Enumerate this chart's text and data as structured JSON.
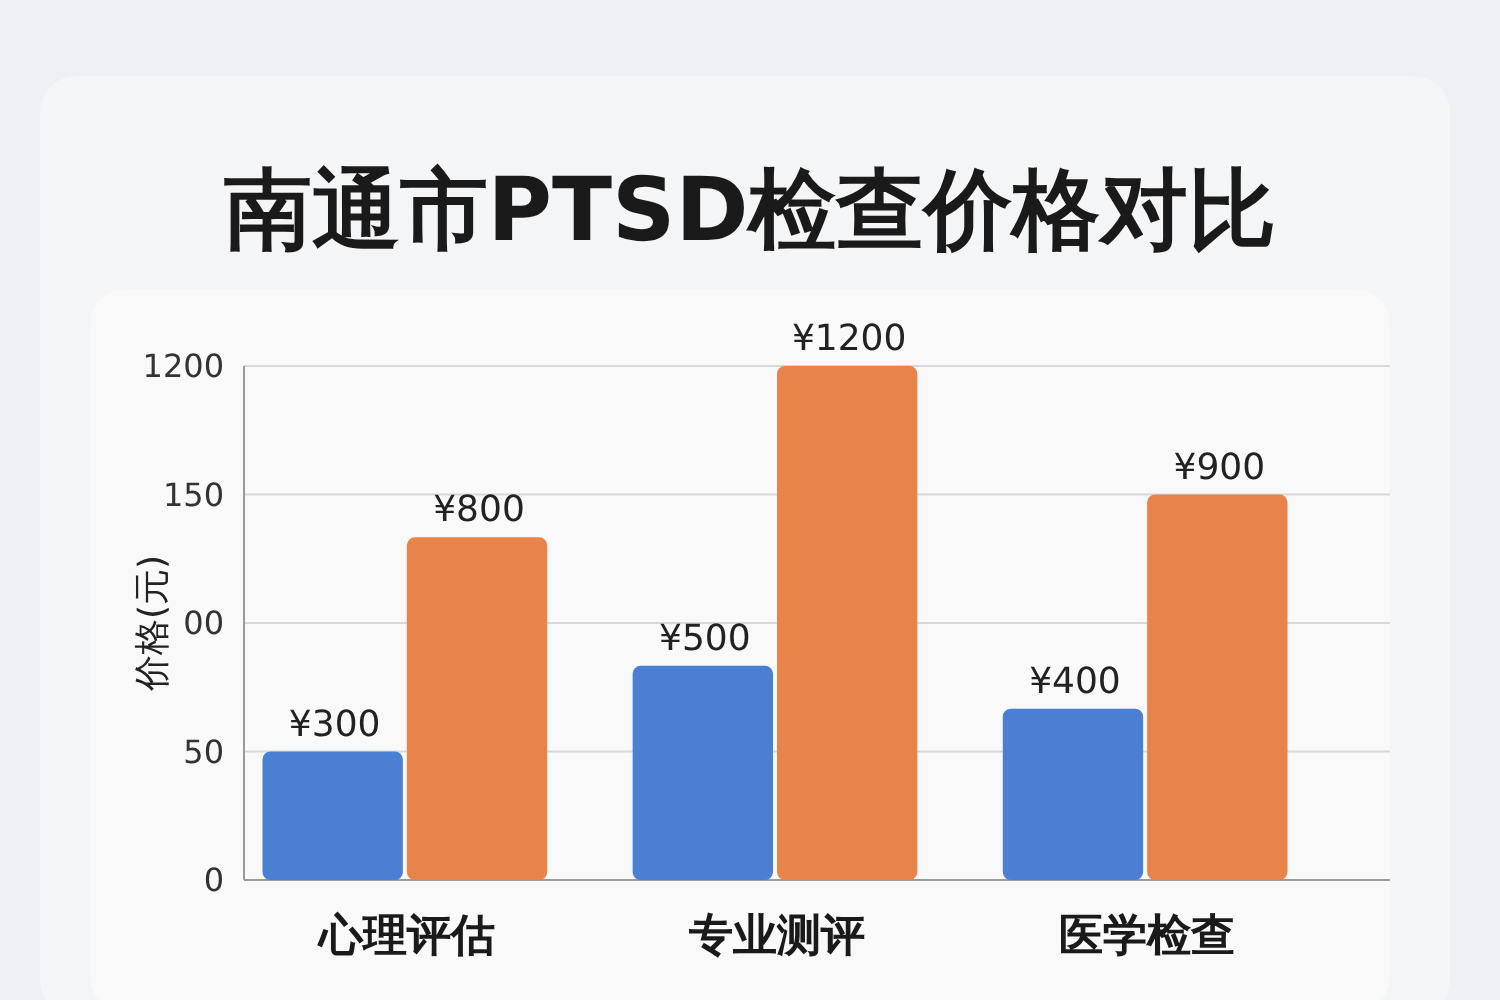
{
  "chart_data": {
    "type": "bar",
    "title": "南通市PTSD检查价格对比",
    "ylabel": "价格(元)",
    "categories": [
      "心理评估",
      "专业测评",
      "医学检查"
    ],
    "series": [
      {
        "color": "#4a7fd4",
        "values": [
          300,
          500,
          400
        ],
        "value_labels": [
          "¥300",
          "¥500",
          "¥400"
        ]
      },
      {
        "color": "#e8834a",
        "values": [
          800,
          1200,
          900
        ],
        "value_labels": [
          "¥800",
          "¥1200",
          "¥900"
        ]
      }
    ],
    "ylim": [
      0,
      1200
    ],
    "yticks": [
      {
        "value": 0,
        "label": null
      },
      {
        "value": 300,
        "label": null
      },
      {
        "value": 600,
        "label": null
      },
      {
        "value": 900,
        "label": null
      },
      {
        "value": 1200,
        "label": null
      }
    ],
    "grid": "y",
    "annotations": [
      "0",
      "50",
      "00",
      "150",
      "1200"
    ]
  }
}
